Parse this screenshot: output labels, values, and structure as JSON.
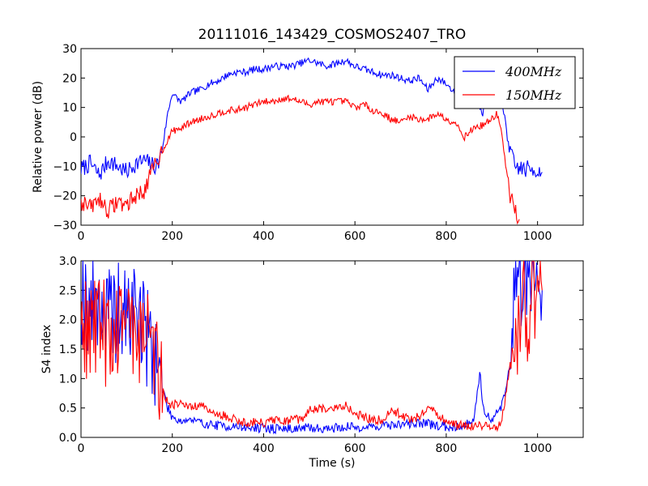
{
  "chart_data": [
    {
      "type": "line",
      "title": "20111016_143429_COSMOS2407_TRO",
      "xlabel": "",
      "ylabel": "Relative power (dB)",
      "xlim": [
        0,
        1100
      ],
      "ylim": [
        -30,
        30
      ],
      "xticks": [
        "0",
        "200",
        "400",
        "600",
        "800",
        "1000"
      ],
      "yticks": [
        "−30",
        "−20",
        "−10",
        "0",
        "10",
        "20",
        "30"
      ],
      "legend_position": "top-right",
      "series": [
        {
          "name": "400MHz",
          "color": "#0000ff",
          "points": [
            [
              0,
              -11
            ],
            [
              20,
              -9
            ],
            [
              40,
              -13
            ],
            [
              60,
              -8
            ],
            [
              80,
              -10
            ],
            [
              100,
              -12
            ],
            [
              120,
              -9
            ],
            [
              140,
              -8
            ],
            [
              160,
              -10
            ],
            [
              170,
              -9
            ],
            [
              180,
              -2
            ],
            [
              190,
              8
            ],
            [
              200,
              15
            ],
            [
              210,
              13
            ],
            [
              220,
              12
            ],
            [
              240,
              15
            ],
            [
              260,
              16
            ],
            [
              280,
              18
            ],
            [
              300,
              19
            ],
            [
              320,
              21
            ],
            [
              340,
              22
            ],
            [
              360,
              22
            ],
            [
              380,
              23
            ],
            [
              400,
              23
            ],
            [
              420,
              24
            ],
            [
              440,
              24
            ],
            [
              460,
              24
            ],
            [
              480,
              25
            ],
            [
              500,
              26
            ],
            [
              520,
              25
            ],
            [
              540,
              24
            ],
            [
              560,
              25
            ],
            [
              580,
              26
            ],
            [
              600,
              24
            ],
            [
              620,
              23
            ],
            [
              640,
              22
            ],
            [
              660,
              21
            ],
            [
              680,
              21
            ],
            [
              700,
              20
            ],
            [
              720,
              19
            ],
            [
              740,
              20
            ],
            [
              760,
              16
            ],
            [
              780,
              20
            ],
            [
              800,
              18
            ],
            [
              820,
              15
            ],
            [
              840,
              19
            ],
            [
              860,
              15
            ],
            [
              880,
              8
            ],
            [
              900,
              18
            ],
            [
              910,
              18
            ],
            [
              920,
              12
            ],
            [
              930,
              5
            ],
            [
              940,
              -5
            ],
            [
              950,
              -10
            ],
            [
              970,
              -11
            ],
            [
              990,
              -11
            ],
            [
              1010,
              -12
            ]
          ]
        },
        {
          "name": "150MHz",
          "color": "#ff0000",
          "points": [
            [
              0,
              -22
            ],
            [
              20,
              -24
            ],
            [
              40,
              -21
            ],
            [
              60,
              -25
            ],
            [
              80,
              -22
            ],
            [
              100,
              -23
            ],
            [
              120,
              -20
            ],
            [
              140,
              -18
            ],
            [
              160,
              -10
            ],
            [
              180,
              -4
            ],
            [
              200,
              2
            ],
            [
              220,
              3
            ],
            [
              240,
              5
            ],
            [
              260,
              6
            ],
            [
              280,
              7
            ],
            [
              300,
              8
            ],
            [
              320,
              9
            ],
            [
              340,
              9
            ],
            [
              360,
              10
            ],
            [
              380,
              11
            ],
            [
              400,
              12
            ],
            [
              420,
              12
            ],
            [
              440,
              13
            ],
            [
              460,
              13
            ],
            [
              480,
              12
            ],
            [
              500,
              11
            ],
            [
              520,
              12
            ],
            [
              540,
              12
            ],
            [
              560,
              12
            ],
            [
              580,
              12
            ],
            [
              600,
              10
            ],
            [
              620,
              11
            ],
            [
              640,
              9
            ],
            [
              660,
              8
            ],
            [
              680,
              6
            ],
            [
              700,
              5
            ],
            [
              720,
              7
            ],
            [
              740,
              6
            ],
            [
              760,
              6
            ],
            [
              780,
              8
            ],
            [
              800,
              6
            ],
            [
              820,
              5
            ],
            [
              840,
              0
            ],
            [
              860,
              3
            ],
            [
              880,
              4
            ],
            [
              900,
              6
            ],
            [
              910,
              8
            ],
            [
              920,
              3
            ],
            [
              930,
              -10
            ],
            [
              940,
              -20
            ],
            [
              950,
              -25
            ],
            [
              960,
              -28
            ]
          ]
        }
      ]
    },
    {
      "type": "line",
      "title": "",
      "xlabel": "Time (s)",
      "ylabel": "S4 index",
      "xlim": [
        0,
        1100
      ],
      "ylim": [
        0,
        3
      ],
      "xticks": [
        "0",
        "200",
        "400",
        "600",
        "800",
        "1000"
      ],
      "yticks": [
        "0.0",
        "0.5",
        "1.0",
        "1.5",
        "2.0",
        "2.5",
        "3.0"
      ],
      "series": [
        {
          "name": "400MHz",
          "color": "#0000ff",
          "points": [
            [
              0,
              2.5
            ],
            [
              20,
              2.2
            ],
            [
              40,
              2.4
            ],
            [
              60,
              2.0
            ],
            [
              80,
              2.1
            ],
            [
              100,
              2.0
            ],
            [
              120,
              2.3
            ],
            [
              140,
              1.8
            ],
            [
              160,
              1.5
            ],
            [
              170,
              1.2
            ],
            [
              180,
              0.8
            ],
            [
              190,
              0.5
            ],
            [
              200,
              0.35
            ],
            [
              220,
              0.28
            ],
            [
              240,
              0.3
            ],
            [
              260,
              0.25
            ],
            [
              280,
              0.22
            ],
            [
              300,
              0.2
            ],
            [
              340,
              0.18
            ],
            [
              380,
              0.16
            ],
            [
              420,
              0.15
            ],
            [
              460,
              0.15
            ],
            [
              500,
              0.16
            ],
            [
              540,
              0.15
            ],
            [
              580,
              0.18
            ],
            [
              620,
              0.17
            ],
            [
              660,
              0.2
            ],
            [
              700,
              0.22
            ],
            [
              740,
              0.25
            ],
            [
              780,
              0.2
            ],
            [
              800,
              0.18
            ],
            [
              840,
              0.2
            ],
            [
              860,
              0.3
            ],
            [
              870,
              0.9
            ],
            [
              875,
              1.1
            ],
            [
              880,
              0.5
            ],
            [
              900,
              0.3
            ],
            [
              920,
              0.5
            ],
            [
              940,
              1.2
            ],
            [
              950,
              2.5
            ],
            [
              970,
              2.8
            ],
            [
              990,
              2.9
            ],
            [
              1010,
              2.5
            ]
          ]
        },
        {
          "name": "150MHz",
          "color": "#ff0000",
          "points": [
            [
              0,
              2.0
            ],
            [
              20,
              1.8
            ],
            [
              40,
              2.1
            ],
            [
              60,
              1.6
            ],
            [
              80,
              1.9
            ],
            [
              100,
              2.2
            ],
            [
              120,
              1.7
            ],
            [
              140,
              2.0
            ],
            [
              160,
              1.4
            ],
            [
              170,
              1.2
            ],
            [
              180,
              0.8
            ],
            [
              190,
              0.6
            ],
            [
              200,
              0.55
            ],
            [
              220,
              0.6
            ],
            [
              240,
              0.5
            ],
            [
              260,
              0.55
            ],
            [
              280,
              0.45
            ],
            [
              300,
              0.4
            ],
            [
              320,
              0.35
            ],
            [
              340,
              0.3
            ],
            [
              360,
              0.25
            ],
            [
              380,
              0.25
            ],
            [
              400,
              0.25
            ],
            [
              420,
              0.3
            ],
            [
              440,
              0.25
            ],
            [
              460,
              0.3
            ],
            [
              480,
              0.3
            ],
            [
              500,
              0.45
            ],
            [
              520,
              0.5
            ],
            [
              540,
              0.45
            ],
            [
              560,
              0.5
            ],
            [
              580,
              0.55
            ],
            [
              600,
              0.4
            ],
            [
              620,
              0.35
            ],
            [
              640,
              0.3
            ],
            [
              660,
              0.3
            ],
            [
              680,
              0.45
            ],
            [
              700,
              0.4
            ],
            [
              720,
              0.3
            ],
            [
              740,
              0.35
            ],
            [
              760,
              0.5
            ],
            [
              780,
              0.4
            ],
            [
              800,
              0.25
            ],
            [
              820,
              0.2
            ],
            [
              840,
              0.2
            ],
            [
              860,
              0.2
            ],
            [
              880,
              0.2
            ],
            [
              900,
              0.18
            ],
            [
              920,
              0.2
            ],
            [
              940,
              1.2
            ],
            [
              950,
              2.0
            ],
            [
              960,
              1.5
            ],
            [
              970,
              2.5
            ],
            [
              980,
              2.0
            ],
            [
              990,
              2.6
            ],
            [
              1000,
              2.0
            ],
            [
              1010,
              2.5
            ]
          ]
        }
      ]
    }
  ]
}
